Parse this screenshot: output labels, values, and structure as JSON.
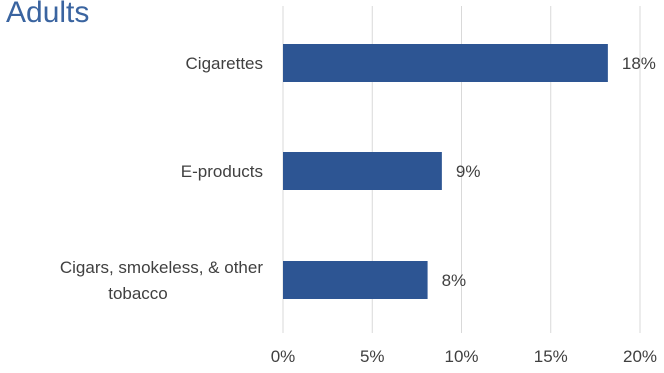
{
  "chart_data": {
    "type": "bar",
    "orientation": "horizontal",
    "title": "Adults",
    "categories": [
      [
        "Cigarettes"
      ],
      [
        "E-products"
      ],
      [
        "Cigars, smokeless, & other",
        "tobacco"
      ]
    ],
    "values": [
      18.2,
      8.9,
      8.1
    ],
    "data_labels": [
      "18%",
      "9%",
      "8%"
    ],
    "xlim": [
      0,
      20
    ],
    "xticks": [
      "0%",
      "5%",
      "10%",
      "15%",
      "20%"
    ],
    "grid": "vertical",
    "colors": {
      "bar": "#2d5593",
      "grid": "#d9d9d9",
      "title": "#3a64a0",
      "text": "#404040"
    }
  }
}
